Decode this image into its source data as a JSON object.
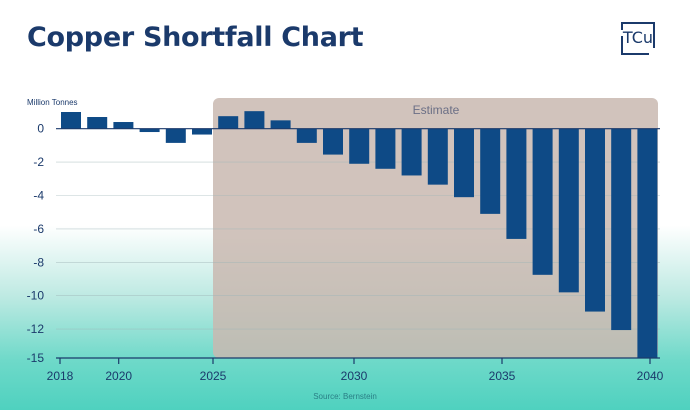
{
  "title": "Copper Shortfall Chart",
  "logo_text": "TCu",
  "source": "Source: Bernstein",
  "colors": {
    "bar": "#0e4a86",
    "estimate_shade": "#c9b8b0",
    "title": "#1b3a6b"
  },
  "chart_data": {
    "type": "bar",
    "title": "Copper Shortfall Chart",
    "ylabel": "Million Tonnes",
    "xlabel": "",
    "categories": [
      "2018",
      "2019",
      "2020",
      "2021",
      "2022",
      "2023",
      "2024",
      "2025",
      "2026",
      "2027",
      "2028",
      "2029",
      "2030",
      "2031",
      "2032",
      "2033",
      "2034",
      "2035",
      "2036",
      "2037",
      "2038",
      "2039",
      "2040"
    ],
    "values": [
      1.0,
      0.7,
      0.4,
      -0.2,
      -0.85,
      -0.35,
      0.75,
      1.05,
      0.5,
      -0.85,
      -1.55,
      -2.1,
      -2.4,
      -2.8,
      -3.35,
      -4.1,
      -5.1,
      -6.6,
      -8.75,
      -9.8,
      -10.95,
      -12.1,
      -15
    ],
    "ylim": [
      -15,
      1.2
    ],
    "yticks": [
      "0",
      "-2",
      "-4",
      "-6",
      "-8",
      "-10",
      "-12",
      "-15"
    ],
    "ytick_values": [
      0,
      -2,
      -4,
      -6,
      -8,
      -10,
      -12,
      -15
    ],
    "xticks": [
      "2018",
      "2020",
      "2025",
      "2030",
      "2035",
      "2040"
    ],
    "annotation": "Estimate",
    "estimate_from": "2025",
    "grid": true,
    "legend": "none"
  }
}
